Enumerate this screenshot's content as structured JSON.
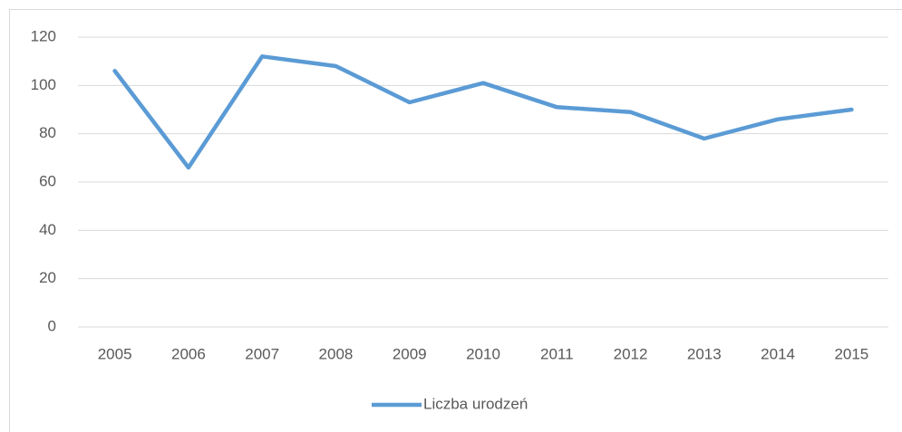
{
  "chart_data": {
    "type": "line",
    "categories": [
      "2005",
      "2006",
      "2007",
      "2008",
      "2009",
      "2010",
      "2011",
      "2012",
      "2013",
      "2014",
      "2015"
    ],
    "series": [
      {
        "name": "Liczba urodzeń",
        "color": "#5b9bd5",
        "values": [
          106,
          66,
          112,
          108,
          93,
          101,
          91,
          89,
          78,
          86,
          90
        ]
      }
    ],
    "ylim": [
      0,
      120
    ],
    "yticks": [
      0,
      20,
      40,
      60,
      80,
      100,
      120
    ],
    "grid": true,
    "legend": "bottom"
  }
}
